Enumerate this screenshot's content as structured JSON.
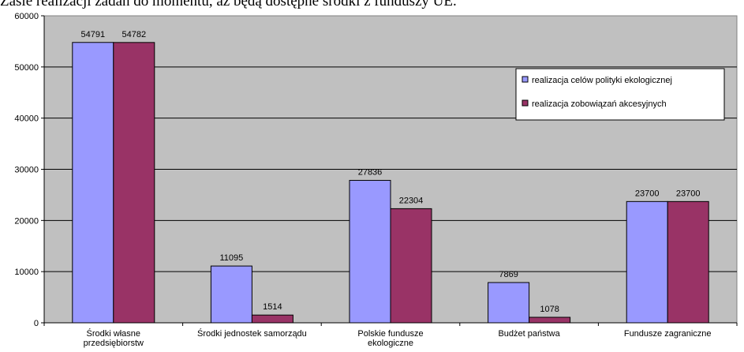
{
  "header_text": "Zasie realizacji zadań do momentu, aż będą dostępne środki z funduszy UE.",
  "colors": {
    "plot_background": "#c0c0c0",
    "series_1": "#9999ff",
    "series_2": "#993366"
  },
  "chart_data": {
    "type": "bar",
    "title": "",
    "xlabel": "",
    "ylabel": "",
    "ylim": [
      0,
      60000
    ],
    "yticks": [
      0,
      10000,
      20000,
      30000,
      40000,
      50000,
      60000
    ],
    "grid": true,
    "legend_position": "right",
    "categories": [
      [
        "Środki własne",
        "przedsiębiorstw"
      ],
      [
        "Środki jednostek samorządu"
      ],
      [
        "Polskie fundusze",
        "ekologiczne"
      ],
      [
        "Budżet państwa"
      ],
      [
        "Fundusze zagraniczne"
      ]
    ],
    "series": [
      {
        "name": "realizacja celów polityki ekologicznej",
        "values": [
          54791,
          11095,
          27836,
          7869,
          23700
        ]
      },
      {
        "name": "realizacja zobowiązań akcesyjnych",
        "values": [
          54782,
          1514,
          22304,
          1078,
          23700
        ]
      }
    ]
  }
}
